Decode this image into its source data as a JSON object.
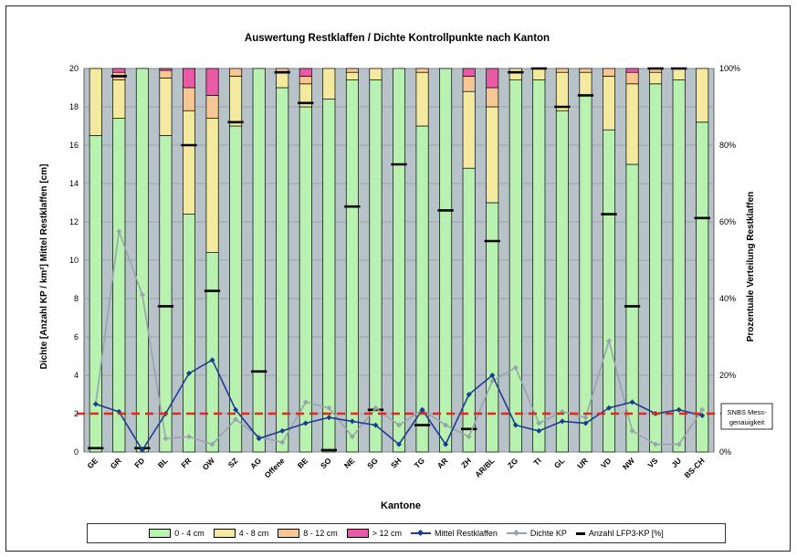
{
  "colors": {
    "green": "#b9f2b0",
    "yellow": "#f3eaa0",
    "orange": "#f6c795",
    "pink": "#e85aa6",
    "plot_bg": "#b7c3c9",
    "line_blue": "#1f3a93",
    "line_grey": "#9aa3ad",
    "marker": "#000000",
    "threshold": "#e0281e"
  },
  "chart_data": {
    "type": "bar",
    "stacked": true,
    "title": "Auswertung Restklaffen / Dichte Kontrollpunkte nach Kanton",
    "xlabel": "Kantone",
    "ylabel": "Dichte [Anzahl KP / km²]  Mittel Restklaffen  [cm]",
    "y2label": "Prozentuale Verteilung Restklaffen",
    "ylim": [
      0,
      20
    ],
    "y_ticks": [
      "0",
      "2",
      "4",
      "6",
      "8",
      "10",
      "12",
      "14",
      "16",
      "18",
      "20"
    ],
    "y2lim": [
      0,
      100
    ],
    "y2_ticks": [
      "0%",
      "20%",
      "40%",
      "60%",
      "80%",
      "100%"
    ],
    "grid": true,
    "legend_position": "bottom",
    "categories": [
      "GE",
      "GR",
      "FD",
      "BL",
      "FR",
      "OW",
      "SZ",
      "AG",
      "Offene",
      "BE",
      "SO",
      "NE",
      "SG",
      "SH",
      "TG",
      "AR",
      "ZH",
      "AR/BL",
      "ZG",
      "TI",
      "GL",
      "UR",
      "VD",
      "NW",
      "VS",
      "JU",
      "BS-CH"
    ],
    "series": [
      {
        "name": "0 - 4 cm",
        "values": [
          82.5,
          87,
          100,
          82.5,
          62,
          52,
          85,
          100,
          95,
          90,
          92,
          97,
          97,
          100,
          85,
          100,
          74,
          65,
          97,
          97,
          89,
          93,
          84,
          75,
          96,
          97,
          86
        ]
      },
      {
        "name": "4 - 8 cm",
        "values": [
          17.5,
          10,
          0,
          15,
          27,
          35,
          13,
          0,
          4,
          6,
          8,
          2,
          3,
          0,
          14,
          0,
          20,
          25,
          3,
          3,
          10,
          6,
          14,
          21,
          3,
          3,
          14
        ]
      },
      {
        "name": "8 - 12 cm",
        "values": [
          0,
          2,
          0,
          2,
          6,
          6,
          2,
          0,
          1,
          2,
          0,
          1,
          0,
          0,
          1,
          0,
          4,
          5,
          0,
          0,
          1,
          1,
          2,
          3,
          1,
          0,
          0
        ]
      },
      {
        "name": "> 12 cm",
        "values": [
          0,
          1,
          0,
          0.5,
          5,
          7,
          0,
          0,
          0,
          2,
          0,
          0,
          0,
          0,
          0,
          0,
          2,
          5,
          0,
          0,
          0,
          0,
          0,
          1,
          0,
          0,
          0
        ]
      },
      {
        "name": "Mittel Restklaffen",
        "values": [
          2.5,
          2.1,
          0.1,
          2.0,
          4.1,
          4.8,
          2.2,
          0.7,
          1.1,
          1.5,
          1.8,
          1.6,
          1.4,
          0.4,
          2.2,
          0.4,
          3.0,
          4.0,
          1.4,
          1.1,
          1.6,
          1.5,
          2.3,
          2.6,
          2.0,
          2.2,
          1.9
        ]
      },
      {
        "name": "Dichte KP",
        "values": [
          2.5,
          11.5,
          8.2,
          0.7,
          0.8,
          0.4,
          1.7,
          0.8,
          0.5,
          2.6,
          2.3,
          0.8,
          2.3,
          1.4,
          2.2,
          1.4,
          0.8,
          3.7,
          4.4,
          1.5,
          2.1,
          1.8,
          5.8,
          1.1,
          0.4,
          0.4,
          2.2
        ]
      },
      {
        "name": "Anzahl LFP3-KP [%]",
        "values": [
          1,
          98,
          1,
          38,
          80,
          42,
          86,
          21,
          99,
          91,
          0.5,
          64,
          11,
          75,
          7,
          63,
          6,
          55,
          99,
          100,
          90,
          93,
          62,
          38,
          100,
          100,
          61
        ]
      }
    ],
    "threshold": {
      "value": 2,
      "label_line1": "SNBS Mess-",
      "label_line2": "genauigkeit"
    }
  },
  "legend": {
    "items": [
      "0 - 4 cm",
      "4 - 8 cm",
      "8 - 12 cm",
      "> 12 cm",
      "Mittel Restklaffen",
      "Dichte KP",
      "Anzahl LFP3-KP [%]"
    ]
  }
}
